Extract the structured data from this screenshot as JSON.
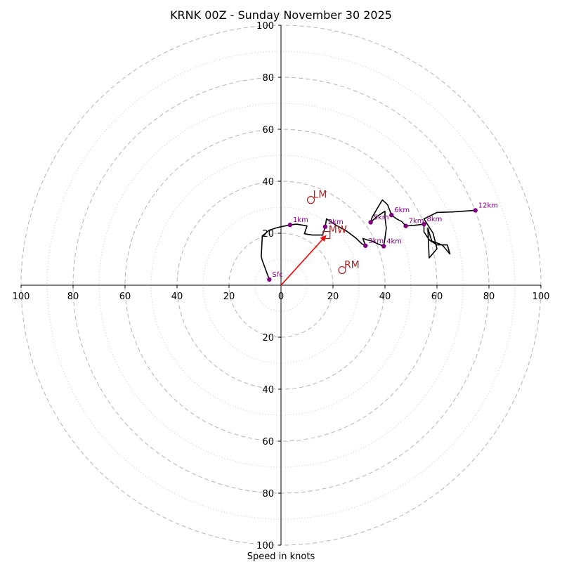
{
  "chart_data": {
    "type": "line",
    "title": "KRNK 00Z - Sunday November 30 2025",
    "xlabel": "Speed in knots",
    "ylabel": "",
    "xlim": [
      -100,
      100
    ],
    "ylim": [
      -100,
      100
    ],
    "grid": true,
    "ring_radii_major": [
      20,
      40,
      60,
      80,
      100
    ],
    "ring_radii_minor": [
      10,
      30,
      50,
      70,
      90
    ],
    "x_tick_labels": [
      "100",
      "80",
      "60",
      "40",
      "20",
      "0",
      "20",
      "40",
      "60",
      "80",
      "100"
    ],
    "y_tick_labels": [
      "100",
      "80",
      "60",
      "40",
      "20",
      "20",
      "40",
      "60",
      "80",
      "100"
    ],
    "hodograph_line": {
      "color": "#000000",
      "points": [
        [
          -4.5,
          2.2
        ],
        [
          -7.2,
          9.5
        ],
        [
          -7.6,
          11.0
        ],
        [
          -7.2,
          19.0
        ],
        [
          -4.5,
          21.2
        ],
        [
          -2.0,
          22.0
        ],
        [
          0,
          22.5
        ],
        [
          3.5,
          23.2
        ],
        [
          6,
          23.5
        ],
        [
          10,
          22.8
        ],
        [
          9,
          19.8
        ],
        [
          12,
          19.3
        ],
        [
          16,
          19.3
        ],
        [
          17,
          22.5
        ],
        [
          17.5,
          25.5
        ],
        [
          21,
          23.2
        ],
        [
          25,
          21.0
        ],
        [
          29,
          18.0
        ],
        [
          31,
          16.0
        ],
        [
          32.5,
          15.2
        ],
        [
          31.5,
          18.0
        ],
        [
          33,
          17.5
        ],
        [
          35,
          17.0
        ],
        [
          37,
          16.0
        ],
        [
          39.5,
          15.0
        ],
        [
          40,
          18.0
        ],
        [
          40.5,
          22.0
        ],
        [
          40,
          26.0
        ],
        [
          40,
          28.5
        ],
        [
          37,
          26.5
        ],
        [
          34.5,
          24.2
        ],
        [
          35,
          26.0
        ],
        [
          37,
          29.5
        ],
        [
          39,
          32.8
        ],
        [
          41,
          31.0
        ],
        [
          42.5,
          27.0
        ],
        [
          44.5,
          25.5
        ],
        [
          46.5,
          24.5
        ],
        [
          48,
          22.8
        ],
        [
          51,
          23.0
        ],
        [
          55,
          23.5
        ],
        [
          55,
          20.5
        ],
        [
          57,
          17.5
        ],
        [
          60,
          15.5
        ],
        [
          64,
          15.5
        ],
        [
          65,
          12.0
        ],
        [
          62,
          15.5
        ],
        [
          58,
          17.0
        ],
        [
          56.5,
          22.0
        ],
        [
          57,
          10.5
        ],
        [
          60,
          14.0
        ],
        [
          58.5,
          20.0
        ],
        [
          55,
          25.5
        ],
        [
          60,
          28.0
        ],
        [
          66,
          28.2
        ],
        [
          74.8,
          28.8
        ]
      ]
    },
    "height_markers": {
      "color": "#800080",
      "points": [
        {
          "label": "Sfc",
          "x": -4.5,
          "y": 2.2
        },
        {
          "label": "1km",
          "x": 3.5,
          "y": 23.2
        },
        {
          "label": "2km",
          "x": 17.0,
          "y": 22.5
        },
        {
          "label": "3km",
          "x": 32.5,
          "y": 15.2
        },
        {
          "label": "4km",
          "x": 39.5,
          "y": 15.0
        },
        {
          "label": "5km",
          "x": 34.5,
          "y": 24.2
        },
        {
          "label": "6km",
          "x": 42.5,
          "y": 27.0
        },
        {
          "label": "7km",
          "x": 48.0,
          "y": 22.8
        },
        {
          "label": "8km",
          "x": 55.0,
          "y": 23.5
        },
        {
          "label": "12km",
          "x": 74.8,
          "y": 28.8
        }
      ]
    },
    "storm_motion": {
      "color": "#b22222",
      "arrow_color": "#ff0000",
      "points": [
        {
          "label": "LM",
          "x": 11.5,
          "y": 32.8,
          "marker": "circle"
        },
        {
          "label": "MW",
          "x": 17.5,
          "y": 19.3,
          "marker": "square"
        },
        {
          "label": "RM",
          "x": 23.5,
          "y": 5.8,
          "marker": "circle"
        }
      ],
      "arrow_to": [
        17.5,
        19.3
      ]
    }
  }
}
